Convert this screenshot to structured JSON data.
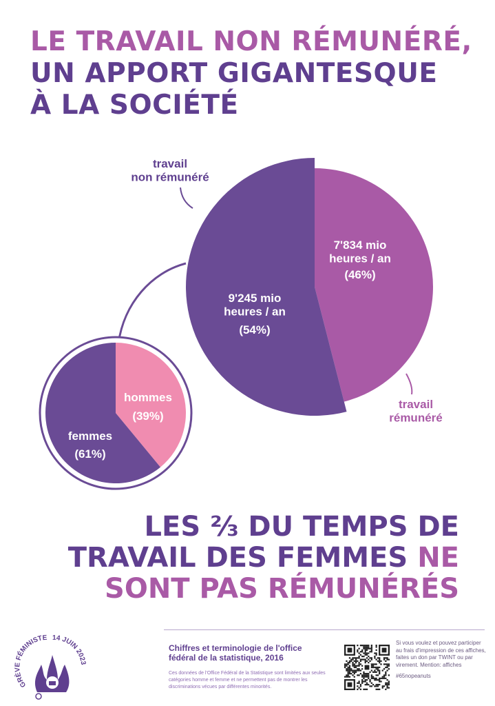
{
  "title": {
    "line1": "LE TRAVAIL NON RÉMUNÉRÉ,",
    "line2": "UN APPORT GIGANTESQUE",
    "line3": "À LA SOCIÉTÉ"
  },
  "colors": {
    "purple": "#6a4b95",
    "pink": "#a95aa6",
    "light_pink": "#f08cb0",
    "text_purple": "#5f3f8f"
  },
  "chart_data": [
    {
      "type": "pie",
      "slices": [
        {
          "label_lines": [
            "travail",
            "non rémunéré"
          ],
          "value_lines": [
            "9'245 mio",
            "heures / an"
          ],
          "percent_label": "(54%)",
          "value": 9245,
          "percent": 54
        },
        {
          "label_lines": [
            "travail",
            "rémunéré"
          ],
          "value_lines": [
            "7'834 mio",
            "heures / an"
          ],
          "percent_label": "(46%)",
          "value": 7834,
          "percent": 46
        }
      ]
    },
    {
      "type": "pie",
      "slices": [
        {
          "label": "femmes",
          "percent_label": "(61%)",
          "percent": 61
        },
        {
          "label": "hommes",
          "percent_label": "(39%)",
          "percent": 39
        }
      ]
    }
  ],
  "headline": {
    "line1": "LES ⅔ DU TEMPS DE",
    "line2_a": "TRAVAIL DES FEMMES",
    "line2_b": "NE",
    "line3": "SONT PAS RÉMUNÉRÉS"
  },
  "footer": {
    "logo_text_left": "GRÈVE FÉMINISTE",
    "logo_text_right": "14 JUIN 2023",
    "source_title": "Chiffres et terminologie de l'office fédéral de la statistique, 2016",
    "source_note": "Ces données de l'Office Fédéral de la Statistique sont limitées aux seules catégories homme et femme et ne permettent pas de montrer les discriminations vécues par différentes minorités.",
    "qr_text": "Si vous voulez et pouvez participer au frais d'impression de ces affiches, faites un don par TWINT ou par virement. Mention: affiches",
    "hashtag": "#65nopeanuts"
  }
}
